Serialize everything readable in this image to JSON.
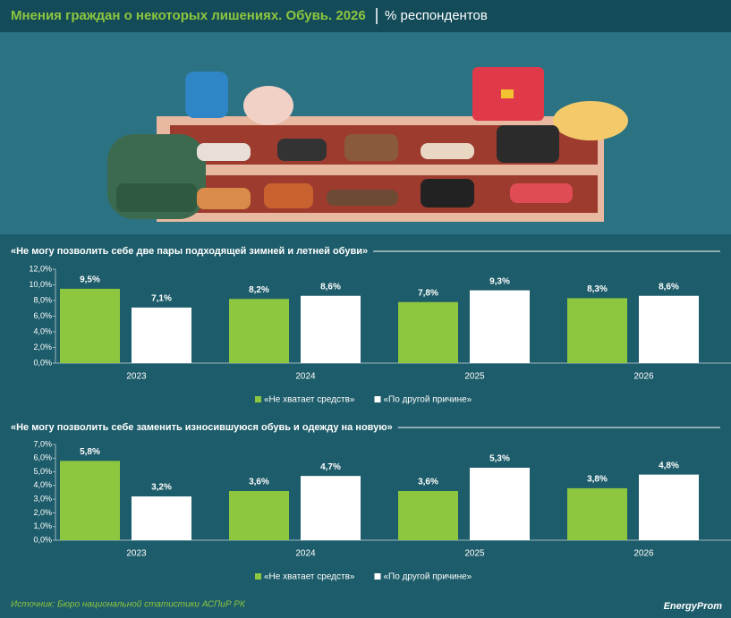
{
  "header": {
    "title": "Мнения граждан о некоторых лишениях. Обувь. 2026",
    "subtitle": "% респондентов"
  },
  "chart_data": [
    {
      "type": "bar",
      "title": "«Не могу позволить себе две пары подходящей зимней и летней обуви»",
      "categories": [
        "2023",
        "2024",
        "2025",
        "2026"
      ],
      "series": [
        {
          "name": "«Не хватает средств»",
          "color": "#8dc63f",
          "values": [
            9.5,
            8.2,
            7.8,
            8.3
          ],
          "value_labels": [
            "9,5%",
            "8,2%",
            "7,8%",
            "8,3%"
          ]
        },
        {
          "name": "«По другой причине»",
          "color": "#ffffff",
          "values": [
            7.1,
            8.6,
            9.3,
            8.6
          ],
          "value_labels": [
            "7,1%",
            "8,6%",
            "9,3%",
            "8,6%"
          ]
        }
      ],
      "ylim": [
        0,
        12
      ],
      "yticks": [
        {
          "value": 0,
          "label": "0,0%"
        },
        {
          "value": 2,
          "label": "2,0%"
        },
        {
          "value": 4,
          "label": "4,0%"
        },
        {
          "value": 6,
          "label": "6,0%"
        },
        {
          "value": 8,
          "label": "8,0%"
        },
        {
          "value": 10,
          "label": "10,0%"
        },
        {
          "value": 12,
          "label": "12,0%"
        }
      ]
    },
    {
      "type": "bar",
      "title": "«Не могу позволить себе заменить износившуюся обувь и одежду на новую»",
      "categories": [
        "2023",
        "2024",
        "2025",
        "2026"
      ],
      "series": [
        {
          "name": "«Не хватает средств»",
          "color": "#8dc63f",
          "values": [
            5.8,
            3.6,
            3.6,
            3.8
          ],
          "value_labels": [
            "5,8%",
            "3,6%",
            "3,6%",
            "3,8%"
          ]
        },
        {
          "name": "«По другой причине»",
          "color": "#ffffff",
          "values": [
            3.2,
            4.7,
            5.3,
            4.8
          ],
          "value_labels": [
            "3,2%",
            "4,7%",
            "5,3%",
            "4,8%"
          ]
        }
      ],
      "ylim": [
        0,
        7
      ],
      "yticks": [
        {
          "value": 0,
          "label": "0,0%"
        },
        {
          "value": 1,
          "label": "1,0%"
        },
        {
          "value": 2,
          "label": "2,0%"
        },
        {
          "value": 3,
          "label": "3,0%"
        },
        {
          "value": 4,
          "label": "4,0%"
        },
        {
          "value": 5,
          "label": "5,0%"
        },
        {
          "value": 6,
          "label": "6,0%"
        },
        {
          "value": 7,
          "label": "7,0%"
        }
      ]
    }
  ],
  "footer": {
    "source": "Источник: Бюро национальной статистики АСПиР РК",
    "logo": "EnergyProm"
  }
}
